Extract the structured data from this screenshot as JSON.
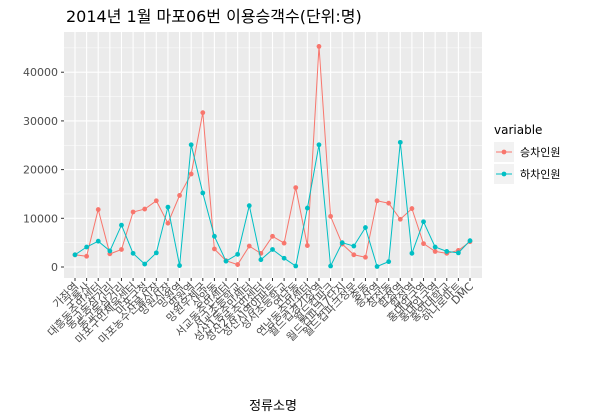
{
  "chart_data": {
    "type": "line",
    "title": "2014년 1월 마포06번 이용승객수(단위:명)",
    "xlabel": "정류소명",
    "ylabel": "",
    "ylim": [
      0,
      46000
    ],
    "yticks": [
      0,
      10000,
      20000,
      30000,
      40000
    ],
    "ytick_labels": [
      "0",
      "10000",
      "20000",
      "30000",
      "40000"
    ],
    "grid": true,
    "legend_title": "variable",
    "legend_position": "right",
    "categories": [
      "가좌역",
      "구룡사",
      "대흥동주민센터",
      "동교동삼거리",
      "동교동삼거리",
      "마포구민체육센터",
      "마포구청",
      "마포농수산물시장",
      "망원시장",
      "망원역",
      "망원역",
      "망원우체국",
      "상암동",
      "서교동주민센터",
      "서교초등학교",
      "성산1동주민센터",
      "성산2동주민센터",
      "성산시영아파트",
      "성서초등학교",
      "연남동",
      "연남동주민센터",
      "월드컵경기장역",
      "월드컵파크",
      "월드컵파크7단지",
      "월드컵파크정문",
      "중동",
      "증산역",
      "창전동",
      "합정역",
      "합정역",
      "홍대입구역",
      "홍대입구역",
      "홍익대학교",
      "하나로마트",
      "DMC"
    ],
    "series": [
      {
        "name": "승차인원",
        "color": "#F8766D",
        "values": [
          2500,
          2200,
          11800,
          2700,
          3600,
          11300,
          11900,
          13600,
          9000,
          14700,
          19100,
          31700,
          3700,
          1300,
          500,
          4300,
          2800,
          6300,
          4900,
          16300,
          4400,
          45300,
          10400,
          4700,
          2500,
          2000,
          13600,
          13100,
          9800,
          12000,
          4800,
          3200,
          2800,
          3400,
          5200
        ]
      },
      {
        "name": "하차인원",
        "color": "#00BFC4",
        "values": [
          2500,
          4100,
          5300,
          3300,
          8600,
          2800,
          600,
          2900,
          12300,
          300,
          25100,
          15200,
          6300,
          1200,
          2600,
          12600,
          1500,
          3600,
          1800,
          200,
          12100,
          25100,
          200,
          5000,
          4300,
          8100,
          100,
          1100,
          25600,
          2800,
          9300,
          4100,
          3200,
          2900,
          5400
        ]
      }
    ]
  }
}
